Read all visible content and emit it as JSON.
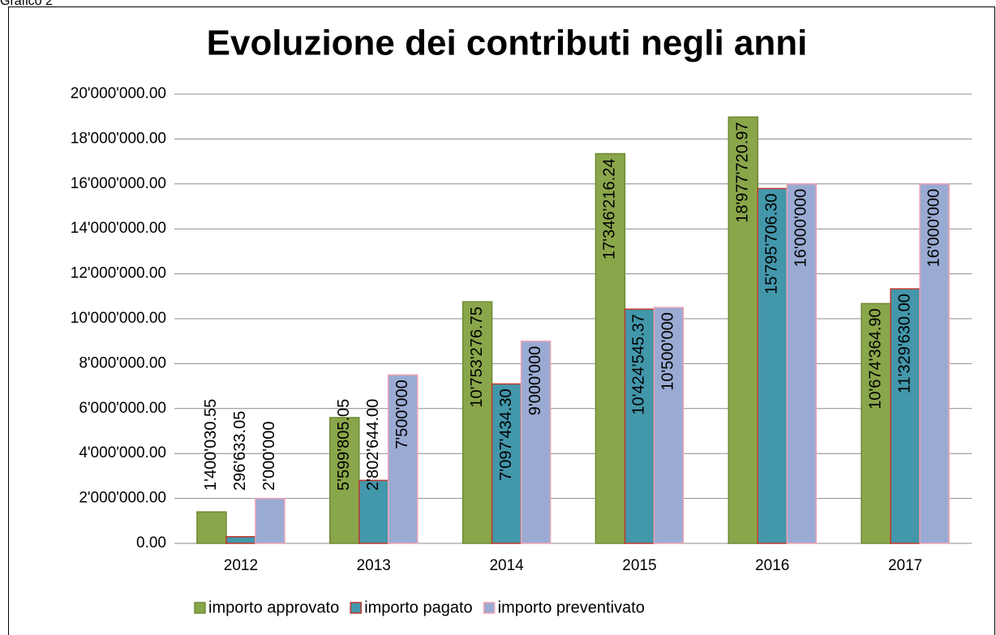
{
  "caption": "Grafico 2",
  "chart_data": {
    "type": "bar",
    "title": "Evoluzione dei contributi negli anni",
    "categories": [
      "2012",
      "2013",
      "2014",
      "2015",
      "2016",
      "2017"
    ],
    "series": [
      {
        "name": "importo approvato",
        "color": "#8aa64a",
        "border": "#6f8a35",
        "values": [
          1400030.55,
          5599805.05,
          10753276.75,
          17346216.24,
          18977720.97,
          10674364.9
        ],
        "value_labels": [
          "1'400'030.55",
          "5'599'805.05",
          "10'753'276.75",
          "17'346'216.24",
          "18'977'720.97",
          "10'674'364.90"
        ]
      },
      {
        "name": "importo pagato",
        "color": "#4397ab",
        "border": "#c0392b",
        "values": [
          296633.05,
          2802644.0,
          7097434.3,
          10424545.37,
          15795706.3,
          11329630.0
        ],
        "value_labels": [
          "296'633.05",
          "2'802'644.00",
          "7'097'434.30",
          "10'424'545.37",
          "15'795'706.30",
          "11'329'630.00"
        ]
      },
      {
        "name": "importo preventivato",
        "color": "#9aabd3",
        "border": "#f0a3b4",
        "values": [
          2000000,
          7500000,
          9000000,
          10500000,
          16000000,
          16000000
        ],
        "value_labels": [
          "2'000'000",
          "7'500'000",
          "9'000'000",
          "10'500'000",
          "16'000'000",
          "16'000'000"
        ]
      }
    ],
    "ylim": [
      0,
      20000000
    ],
    "yticks": [
      {
        "value": 0,
        "label": "0.00"
      },
      {
        "value": 2000000,
        "label": "2'000'000.00"
      },
      {
        "value": 4000000,
        "label": "4'000'000.00"
      },
      {
        "value": 6000000,
        "label": "6'000'000.00"
      },
      {
        "value": 8000000,
        "label": "8'000'000.00"
      },
      {
        "value": 10000000,
        "label": "10'000'000.00"
      },
      {
        "value": 12000000,
        "label": "12'000'000.00"
      },
      {
        "value": 14000000,
        "label": "14'000'000.00"
      },
      {
        "value": 16000000,
        "label": "16'000'000.00"
      },
      {
        "value": 18000000,
        "label": "18'000'000.00"
      },
      {
        "value": 20000000,
        "label": "20'000'000.00"
      }
    ],
    "grid": true,
    "legend": "bottom"
  }
}
